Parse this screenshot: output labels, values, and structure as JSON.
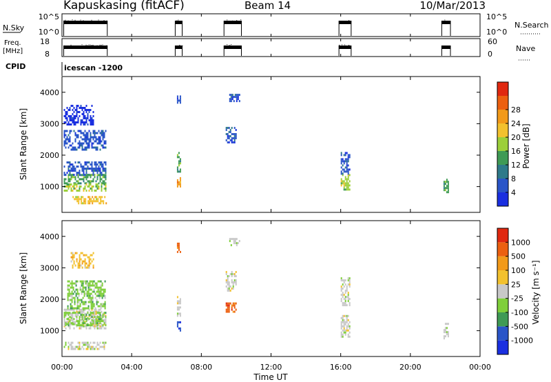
{
  "header": {
    "site": "Kapuskasing (fitACF)",
    "beam": "Beam 14",
    "date": "10/Mar/2013"
  },
  "panels": {
    "nsky": {
      "label": "N.Sky",
      "ticks": [
        "10^5",
        "10^0"
      ]
    },
    "nsearch": {
      "label": "N.Search",
      "ticks": [
        "10^5",
        "10^0"
      ]
    },
    "freq": {
      "label_top": "Freq.",
      "label_unit": "[MHz]",
      "ticks": [
        "18",
        "8"
      ]
    },
    "nave": {
      "label": "Nave",
      "ticks": [
        "60",
        "0"
      ]
    },
    "cpid": {
      "label": "CPID",
      "value": "icescan -1200"
    }
  },
  "axes": {
    "ylabel": "Slant Range [km]",
    "xlabel": "Time UT",
    "x_ticks": [
      "00:00",
      "04:00",
      "08:00",
      "12:00",
      "16:00",
      "20:00",
      "00:00"
    ],
    "y_ticks": [
      "1000",
      "2000",
      "3000",
      "4000"
    ],
    "y_range_km": [
      180,
      4500
    ],
    "x_range_hours": [
      0,
      24
    ]
  },
  "colorbars": {
    "power": {
      "label": "Power [dB]",
      "ticks": [
        "4",
        "8",
        "12",
        "16",
        "20",
        "24",
        "28"
      ],
      "colors": [
        "#1a2fe0",
        "#2a55c8",
        "#2e7a8a",
        "#3f9a55",
        "#9ccf3a",
        "#f2c12e",
        "#f29a1a",
        "#ec6010",
        "#e02810"
      ]
    },
    "velocity": {
      "label": "Velocity [m s⁻¹]",
      "ticks": [
        "1000",
        "500",
        "100",
        "25",
        "-25",
        "-100",
        "-500",
        "-1000"
      ],
      "colors": [
        "#1a2fe0",
        "#2a55c8",
        "#3f9a55",
        "#7fcf3a",
        "#c8c8c8",
        "#f2c12e",
        "#f29a1a",
        "#ec6010",
        "#e02810"
      ]
    }
  },
  "chart_data": {
    "type": "heatmap",
    "x_unit": "hours UT",
    "y_unit": "km",
    "scan_intervals_hours": [
      [
        0.1,
        2.6
      ],
      [
        6.5,
        6.9
      ],
      [
        9.3,
        10.3
      ],
      [
        15.9,
        16.6
      ],
      [
        21.8,
        22.3
      ]
    ],
    "power_blocks": [
      {
        "x": [
          0.1,
          2.5
        ],
        "y": [
          2200,
          2800
        ],
        "level": 1
      },
      {
        "x": [
          0.1,
          2.5
        ],
        "y": [
          1400,
          1800
        ],
        "level": 1
      },
      {
        "x": [
          0.1,
          2.5
        ],
        "y": [
          1100,
          1400
        ],
        "level": 3
      },
      {
        "x": [
          0.1,
          2.5
        ],
        "y": [
          900,
          1100
        ],
        "level": 4
      },
      {
        "x": [
          0.6,
          2.5
        ],
        "y": [
          500,
          700
        ],
        "level": 5
      },
      {
        "x": [
          0.1,
          1.8
        ],
        "y": [
          3000,
          3600
        ],
        "level": 0
      },
      {
        "x": [
          6.6,
          6.8
        ],
        "y": [
          950,
          1300
        ],
        "level": 6
      },
      {
        "x": [
          6.6,
          6.8
        ],
        "y": [
          1500,
          2100
        ],
        "level": 3
      },
      {
        "x": [
          6.6,
          6.8
        ],
        "y": [
          3700,
          3900
        ],
        "level": 1
      },
      {
        "x": [
          9.4,
          10.0
        ],
        "y": [
          2400,
          2900
        ],
        "level": 1
      },
      {
        "x": [
          9.6,
          10.2
        ],
        "y": [
          3700,
          3950
        ],
        "level": 1
      },
      {
        "x": [
          16.0,
          16.5
        ],
        "y": [
          900,
          1400
        ],
        "level": 4
      },
      {
        "x": [
          16.0,
          16.5
        ],
        "y": [
          1400,
          2100
        ],
        "level": 1
      },
      {
        "x": [
          21.9,
          22.2
        ],
        "y": [
          800,
          1250
        ],
        "level": 3
      }
    ],
    "velocity_blocks": [
      {
        "x": [
          0.1,
          2.5
        ],
        "y": [
          1100,
          1700
        ],
        "level": 4
      },
      {
        "x": [
          0.1,
          2.5
        ],
        "y": [
          1200,
          1600
        ],
        "level": 3
      },
      {
        "x": [
          0.3,
          2.5
        ],
        "y": [
          1700,
          2600
        ],
        "level": 3
      },
      {
        "x": [
          0.1,
          2.5
        ],
        "y": [
          450,
          650
        ],
        "level": 4
      },
      {
        "x": [
          0.5,
          1.8
        ],
        "y": [
          3000,
          3500
        ],
        "level": 5
      },
      {
        "x": [
          6.6,
          6.8
        ],
        "y": [
          1000,
          1300
        ],
        "level": 1
      },
      {
        "x": [
          6.6,
          6.8
        ],
        "y": [
          1500,
          2100
        ],
        "level": 4
      },
      {
        "x": [
          6.6,
          6.8
        ],
        "y": [
          3500,
          3800
        ],
        "level": 7
      },
      {
        "x": [
          9.4,
          10.0
        ],
        "y": [
          1600,
          1900
        ],
        "level": 7
      },
      {
        "x": [
          9.4,
          10.0
        ],
        "y": [
          2300,
          2900
        ],
        "level": 4
      },
      {
        "x": [
          9.6,
          10.2
        ],
        "y": [
          3750,
          3950
        ],
        "level": 4
      },
      {
        "x": [
          16.0,
          16.5
        ],
        "y": [
          800,
          1500
        ],
        "level": 4
      },
      {
        "x": [
          16.0,
          16.5
        ],
        "y": [
          1800,
          2700
        ],
        "level": 4
      },
      {
        "x": [
          21.9,
          22.2
        ],
        "y": [
          750,
          1250
        ],
        "level": 4
      }
    ]
  }
}
